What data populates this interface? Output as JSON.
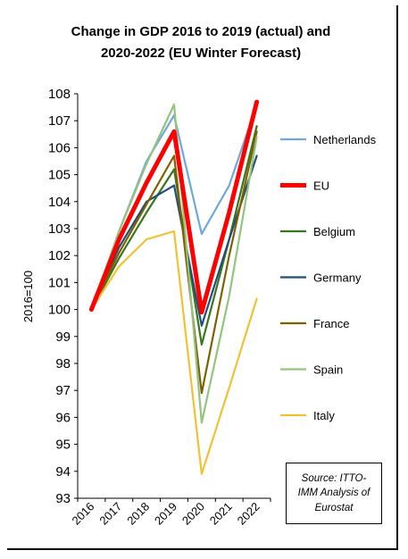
{
  "chart_data": {
    "type": "line",
    "title_lines": [
      "Change in GDP 2016 to 2019 (actual) and",
      "2020-2022 (EU Winter Forecast)"
    ],
    "ylabel": "2016=100",
    "xlabel": "",
    "x": [
      "2016",
      "2017",
      "2018",
      "2019",
      "2020",
      "2021",
      "2022"
    ],
    "ylim": [
      93,
      108
    ],
    "yticks": [
      "108",
      "107",
      "106",
      "105",
      "104",
      "103",
      "102",
      "101",
      "100",
      "99",
      "98",
      "97",
      "96",
      "95",
      "94",
      "93"
    ],
    "grid": false,
    "legend_position": "right",
    "series": [
      {
        "name": "Netherlands",
        "color": "#6fa8dc",
        "values": [
          100.0,
          102.9,
          105.5,
          107.2,
          102.8,
          104.6,
          107.6
        ]
      },
      {
        "name": "EU",
        "color": "#ff0000",
        "values": [
          100.0,
          102.6,
          104.7,
          106.6,
          99.9,
          103.6,
          107.7
        ]
      },
      {
        "name": "Belgium",
        "color": "#38761d",
        "values": [
          100.0,
          101.9,
          103.6,
          105.2,
          98.7,
          102.6,
          106.8
        ]
      },
      {
        "name": "Germany",
        "color": "#1f4e79",
        "values": [
          100.0,
          102.3,
          104.0,
          104.6,
          99.4,
          102.6,
          105.7
        ]
      },
      {
        "name": "France",
        "color": "#7f6000",
        "values": [
          100.0,
          102.1,
          103.9,
          105.7,
          96.9,
          102.0,
          106.6
        ]
      },
      {
        "name": "Spain",
        "color": "#93c47d",
        "values": [
          100.0,
          102.9,
          105.4,
          107.6,
          95.8,
          100.5,
          106.4
        ]
      },
      {
        "name": "Italy",
        "color": "#f1c232",
        "values": [
          100.0,
          101.6,
          102.6,
          102.9,
          93.9,
          97.1,
          100.4
        ]
      }
    ],
    "source_lines": [
      "Source: ITTO-",
      "IMM Analysis of",
      "Eurostat"
    ]
  }
}
